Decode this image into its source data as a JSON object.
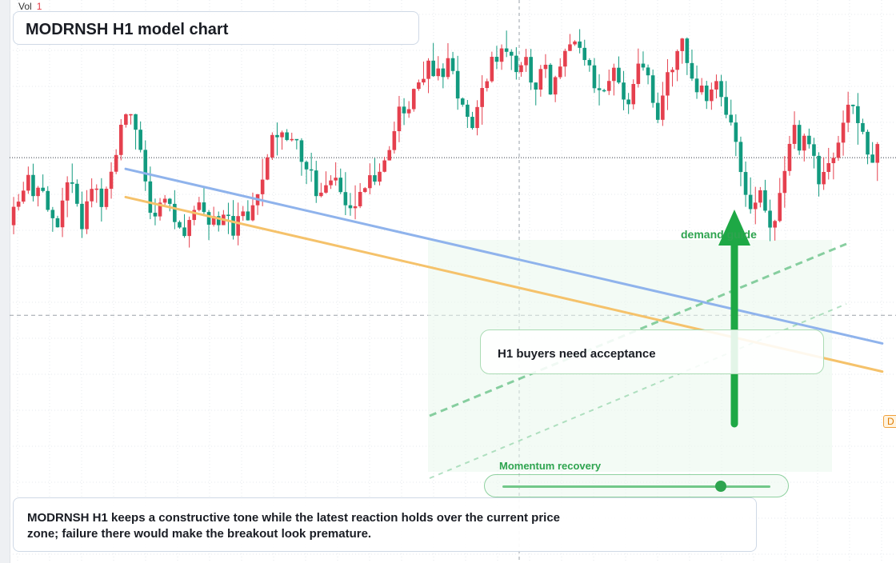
{
  "chart_data": {
    "type": "candlestick",
    "title": "MODRNSH H1 model chart",
    "symbol": "MODRNSH",
    "timeframe": "H1",
    "volume_label": "Vol",
    "volume_value": "1",
    "price_tag": "D",
    "grid": true,
    "y_range": [
      0,
      100
    ],
    "current_price": 72,
    "reference_level": 44,
    "trendlines": [
      {
        "name": "resistance",
        "color": "#f5c26b",
        "from": [
          0,
          65
        ],
        "to": [
          178,
          34
        ]
      },
      {
        "name": "support",
        "color": "#8fb3ec",
        "from": [
          0,
          70
        ],
        "to": [
          178,
          39
        ]
      }
    ],
    "dashed_channel": {
      "color": "#6cc48a",
      "from": [
        62,
        72
      ],
      "to": [
        142,
        40
      ]
    },
    "candles": [
      [
        0,
        60,
        63.27,
        58.39,
        65.02
      ],
      [
        1,
        63.27,
        64.19,
        62.61,
        65.55
      ],
      [
        2,
        64.19,
        66.14,
        63.81,
        67.72
      ],
      [
        3,
        66.14,
        68.93,
        65.57,
        70.42
      ],
      [
        4,
        68.93,
        65.17,
        64.22,
        70.93
      ],
      [
        5,
        65.17,
        66.66,
        63.34,
        66.97
      ],
      [
        6,
        66.66,
        66.08,
        65.82,
        69.02
      ],
      [
        7,
        66.08,
        62.72,
        62.39,
        66.93
      ],
      [
        8,
        62.72,
        61.24,
        58.83,
        63.24
      ],
      [
        9,
        61.24,
        59.63,
        59.57,
        61.67
      ],
      [
        10,
        59.63,
        64.38,
        57.89,
        66.64
      ],
      [
        11,
        64.38,
        67.61,
        61.42,
        68.69
      ],
      [
        12,
        67.61,
        67.36,
        65.72,
        70.96
      ],
      [
        13,
        67.36,
        63.8,
        63.3,
        68.14
      ],
      [
        14,
        63.8,
        59.3,
        57.73,
        65.97
      ],
      [
        15,
        59.3,
        64.24,
        58.42,
        66.23
      ],
      [
        16,
        64.24,
        66.45,
        63.17,
        68.32
      ],
      [
        17,
        66.45,
        66.5,
        63.98,
        67.26
      ],
      [
        18,
        66.5,
        63.23,
        60.65,
        68.35
      ],
      [
        19,
        63.23,
        66.47,
        62.75,
        66.87
      ],
      [
        20,
        66.47,
        69.5,
        64.71,
        71.17
      ],
      [
        21,
        69.5,
        72.47,
        69.06,
        73.49
      ],
      [
        22,
        72.47,
        77.84,
        71.52,
        78.84
      ],
      [
        23,
        77.84,
        79.7,
        77.33,
        79.86
      ],
      [
        24,
        79.7,
        79.72,
        77.88,
        79.75
      ],
      [
        25,
        79.72,
        76.96,
        73.45,
        79.78
      ],
      [
        26,
        76.96,
        73.38,
        72.93,
        78.43
      ],
      [
        27,
        73.38,
        67.78,
        66.08,
        75.07
      ],
      [
        28,
        67.78,
        62.21,
        61.07,
        70.42
      ],
      [
        29,
        62.21,
        61.56,
        59.98,
        64.73
      ],
      [
        30,
        61.56,
        64.01,
        60.82,
        64.83
      ],
      [
        31,
        64.01,
        64.7,
        63.6,
        65.36
      ],
      [
        32,
        64.7,
        63.79,
        62.46,
        64.84
      ],
      [
        33,
        63.79,
        60.56,
        59.28,
        66.22
      ],
      [
        34,
        60.56,
        59.6,
        59.38,
        60.85
      ],
      [
        35,
        59.6,
        58.08,
        57.76,
        61.96
      ],
      [
        36,
        58.08,
        60.93,
        56.03,
        61.53
      ],
      [
        37,
        60.93,
        62.7,
        59.97,
        63.46
      ],
      [
        38,
        62.7,
        64.05,
        62.44,
        65.04
      ],
      [
        39,
        64.05,
        62.34,
        61.58,
        66.71
      ],
      [
        40,
        62.34,
        60.09,
        57.35,
        62.71
      ],
      [
        41,
        60.09,
        61.62,
        59.77,
        63.28
      ],
      [
        42,
        61.62,
        60.01,
        58.87,
        62.43
      ],
      [
        43,
        60.01,
        61.87,
        60.01,
        62.69
      ],
      [
        44,
        61.87,
        61.64,
        58.42,
        63.99
      ],
      [
        45,
        61.64,
        58.14,
        57.45,
        64.46
      ],
      [
        46,
        58.14,
        61.62,
        56.42,
        64.02
      ],
      [
        47,
        61.62,
        62.44,
        60.8,
        63.41
      ],
      [
        48,
        62.44,
        60.87,
        60.82,
        64.44
      ],
      [
        49,
        60.87,
        63.54,
        60.69,
        65.79
      ],
      [
        50,
        63.54,
        65.5,
        61.82,
        65.55
      ],
      [
        51,
        65.5,
        68.1,
        63.37,
        71.79
      ],
      [
        52,
        68.1,
        72.04,
        68,
        72.62
      ],
      [
        53,
        72.04,
        76.02,
        71.59,
        76.49
      ],
      [
        54,
        76.02,
        75.62,
        72.39,
        78.25
      ],
      [
        55,
        75.62,
        76.49,
        73.41,
        76.8
      ],
      [
        56,
        76.49,
        75.13,
        74.93,
        77.07
      ],
      [
        57,
        75.13,
        75.31,
        74.86,
        76.43
      ],
      [
        58,
        75.31,
        75.08,
        73.47,
        75.28
      ],
      [
        59,
        75.08,
        71.25,
        68.78,
        75.45
      ],
      [
        60,
        71.25,
        69.92,
        67.3,
        71.49
      ],
      [
        61,
        69.92,
        69.72,
        67.71,
        72.87
      ],
      [
        62,
        69.72,
        65.17,
        63.96,
        71.44
      ],
      [
        63,
        65.17,
        65.78,
        64.94,
        67.52
      ],
      [
        64,
        65.78,
        67.1,
        65.6,
        69.57
      ],
      [
        65,
        67.1,
        67.95,
        66.44,
        68.88
      ],
      [
        66,
        67.95,
        68.44,
        67.03,
        71.18
      ],
      [
        67,
        68.44,
        65.88,
        65.51,
        70.06
      ],
      [
        68,
        65.88,
        63.54,
        61.79,
        69.43
      ],
      [
        69,
        63.54,
        63.02,
        61.68,
        65.73
      ],
      [
        70,
        63.02,
        63.36,
        61.05,
        67.08
      ],
      [
        71,
        63.36,
        65.91,
        63.04,
        67.48
      ],
      [
        72,
        65.91,
        66.58,
        65.74,
        66.77
      ],
      [
        73,
        66.58,
        68.88,
        65.47,
        70.98
      ],
      [
        74,
        68.88,
        67.74,
        67.14,
        71.93
      ],
      [
        75,
        67.74,
        69.49,
        67.06,
        70.98
      ],
      [
        76,
        69.49,
        71.51,
        69.39,
        72.15
      ],
      [
        77,
        71.51,
        73.35,
        71.5,
        74.04
      ],
      [
        78,
        73.35,
        76.7,
        72.72,
        78.4
      ],
      [
        79,
        76.7,
        81.06,
        74.74,
        82.96
      ],
      [
        80,
        81.06,
        79.87,
        77.79,
        82.56
      ],
      [
        81,
        79.87,
        80.61,
        79.08,
        82.04
      ],
      [
        82,
        80.61,
        84.21,
        80.16,
        84.28
      ],
      [
        83,
        84.21,
        85.36,
        83.86,
        85.87
      ],
      [
        84,
        85.36,
        85.99,
        84.88,
        89.07
      ],
      [
        85,
        85.99,
        89.23,
        83.46,
        89.66
      ],
      [
        86,
        89.23,
        86.48,
        86.37,
        92.37
      ],
      [
        87,
        86.48,
        87.84,
        85.71,
        90.03
      ],
      [
        88,
        87.84,
        86.32,
        84.32,
        88.75
      ],
      [
        89,
        86.32,
        89.67,
        85.91,
        92.33
      ],
      [
        90,
        89.67,
        87.39,
        86.79,
        90.78
      ],
      [
        91,
        87.39,
        82.51,
        80.51,
        90.08
      ],
      [
        92,
        82.51,
        81.41,
        81.03,
        82.7
      ],
      [
        93,
        81.41,
        79.25,
        77.27,
        82.24
      ],
      [
        94,
        79.25,
        77.26,
        76.97,
        80.13
      ],
      [
        95,
        77.26,
        80.99,
        75.96,
        82.2
      ],
      [
        96,
        80.99,
        84.37,
        77.85,
        86.64
      ],
      [
        97,
        84.37,
        85.57,
        83.75,
        86.04
      ],
      [
        98,
        85.57,
        89.91,
        85.31,
        90.82
      ],
      [
        99,
        89.91,
        89.03,
        87.72,
        91.87
      ],
      [
        100,
        89.03,
        91.4,
        87.6,
        92.11
      ],
      [
        101,
        91.4,
        90.8,
        89.86,
        94.57
      ],
      [
        102,
        90.8,
        90.11,
        87.56,
        91.25
      ],
      [
        103,
        90.11,
        87.2,
        85.87,
        91.61
      ],
      [
        104,
        87.2,
        88.41,
        86.37,
        88.99
      ],
      [
        105,
        88.41,
        89.89,
        87.23,
        91.33
      ],
      [
        106,
        89.89,
        85.34,
        84.02,
        91.31
      ],
      [
        107,
        85.34,
        84.09,
        81.29,
        85.38
      ],
      [
        108,
        84.09,
        87.74,
        82.83,
        88.47
      ],
      [
        109,
        87.74,
        88.5,
        86.14,
        90.38
      ],
      [
        110,
        88.5,
        83.22,
        83.14,
        88.79
      ],
      [
        111,
        83.22,
        86.29,
        81.85,
        86.54
      ],
      [
        112,
        86.29,
        88.18,
        85.95,
        89.66
      ],
      [
        113,
        88.18,
        90.95,
        86.39,
        91.36
      ],
      [
        114,
        90.95,
        92.12,
        90.93,
        93.96
      ],
      [
        115,
        92.12,
        92.63,
        91.85,
        92.86
      ],
      [
        116,
        92.63,
        91.5,
        90.52,
        94.82
      ],
      [
        117,
        91.5,
        89.34,
        88.33,
        92.94
      ],
      [
        118,
        89.34,
        88.39,
        87.25,
        89.66
      ],
      [
        119,
        88.39,
        84.33,
        83.5,
        89.68
      ],
      [
        120,
        84.33,
        83.99,
        81.27,
        86.82
      ],
      [
        121,
        83.99,
        83.85,
        83.62,
        84.24
      ],
      [
        122,
        83.85,
        85.62,
        83.12,
        87.64
      ],
      [
        123,
        85.62,
        87.97,
        83.04,
        88.69
      ],
      [
        124,
        87.97,
        85.34,
        85.07,
        89.98
      ],
      [
        125,
        85.34,
        82.32,
        80.41,
        87.4
      ],
      [
        126,
        82.32,
        81.48,
        79.75,
        83.49
      ],
      [
        127,
        81.48,
        85.08,
        80.57,
        85.91
      ],
      [
        128,
        85.08,
        88.7,
        84.45,
        91.38
      ],
      [
        129,
        88.7,
        88.01,
        87.45,
        90.87
      ],
      [
        130,
        88.01,
        86.62,
        85.03,
        88.54
      ],
      [
        131,
        86.62,
        81.73,
        80.88,
        87.65
      ],
      [
        132,
        81.73,
        78.72,
        78.11,
        83.56
      ],
      [
        133,
        78.72,
        83.03,
        77.63,
        85.46
      ],
      [
        134,
        83.03,
        87.18,
        80.45,
        89.49
      ],
      [
        135,
        87.18,
        87.6,
        84.62,
        88.08
      ],
      [
        136,
        87.6,
        90.92,
        85.58,
        91.22
      ],
      [
        137,
        90.92,
        93.16,
        88.68,
        93.28
      ],
      [
        138,
        93.16,
        88.8,
        86.67,
        93.36
      ],
      [
        139,
        88.8,
        86.04,
        85.63,
        91.19
      ],
      [
        140,
        86.04,
        83.62,
        82.44,
        88.36
      ],
      [
        141,
        83.62,
        84.8,
        83.17,
        86.14
      ],
      [
        142,
        84.8,
        82.05,
        80.65,
        85.64
      ],
      [
        143,
        82.05,
        84.1,
        80.5,
        85.34
      ],
      [
        144,
        84.1,
        85.6,
        82.52,
        86.77
      ],
      [
        145,
        85.6,
        82.77,
        81.1,
        86.71
      ],
      [
        146,
        82.77,
        79.61,
        78.98,
        85.61
      ],
      [
        147,
        79.61,
        78.24,
        77.7,
        82.3
      ],
      [
        148,
        78.24,
        74.8,
        72.28,
        79.7
      ],
      [
        149,
        74.8,
        69.45,
        66.92,
        75.73
      ],
      [
        150,
        69.45,
        65.39,
        63.26,
        71.31
      ],
      [
        151,
        65.39,
        62.86,
        62.05,
        68.49
      ],
      [
        152,
        62.86,
        64.01,
        60.17,
        66.82
      ],
      [
        153,
        64.01,
        66.2,
        63.17,
        66.78
      ],
      [
        154,
        66.2,
        62.58,
        62.24,
        68.06
      ],
      [
        155,
        62.58,
        59.58,
        57.17,
        64.54
      ],
      [
        156,
        59.58,
        60.75,
        57.26,
        60.97
      ],
      [
        157,
        60.75,
        65.73,
        60.51,
        68.39
      ],
      [
        158,
        65.73,
        69.63,
        63.1,
        72.29
      ],
      [
        159,
        69.63,
        74.44,
        68.79,
        75.86
      ],
      [
        160,
        74.44,
        77.82,
        73.56,
        80.23
      ],
      [
        161,
        77.82,
        73.26,
        72.48,
        78.64
      ],
      [
        162,
        73.26,
        75.89,
        71.32,
        76.28
      ],
      [
        163,
        75.89,
        74.38,
        73.61,
        77.16
      ],
      [
        164,
        74.38,
        72.32,
        70.08,
        75.53
      ],
      [
        165,
        72.32,
        67.27,
        65.09,
        72.96
      ],
      [
        166,
        67.27,
        69.46,
        66.27,
        72.08
      ],
      [
        167,
        69.46,
        71.02,
        68.12,
        73.73
      ],
      [
        168,
        71.02,
        71.96,
        68.14,
        72.9
      ],
      [
        169,
        71.96,
        74.67,
        71.43,
        75.86
      ],
      [
        170,
        74.67,
        78.2,
        72.35,
        80.37
      ],
      [
        171,
        78.2,
        81.4,
        76.53,
        83.71
      ],
      [
        172,
        81.4,
        81.14,
        79.74,
        81.42
      ],
      [
        173,
        81.14,
        78.13,
        74.3,
        83.48
      ],
      [
        174,
        78.13,
        76.59,
        76.14,
        78.92
      ],
      [
        175,
        76.59,
        72.55,
        70.83,
        76.98
      ],
      [
        176,
        72.55,
        71.09,
        71.08,
        74.76
      ],
      [
        177,
        71.09,
        74.42,
        67.86,
        74.76
      ]
    ],
    "annotations": {
      "callout": "H1 buyers need acceptance",
      "momentum_label": "Momentum recovery",
      "momentum_level": 0.81,
      "demand_label": "demand guide",
      "arrow_from_price": 72,
      "arrow_to_price": 20
    },
    "summary": "MODRNSH H1 keeps a constructive tone while the latest reaction holds over the current price zone; failure there would make the breakout look premature."
  }
}
